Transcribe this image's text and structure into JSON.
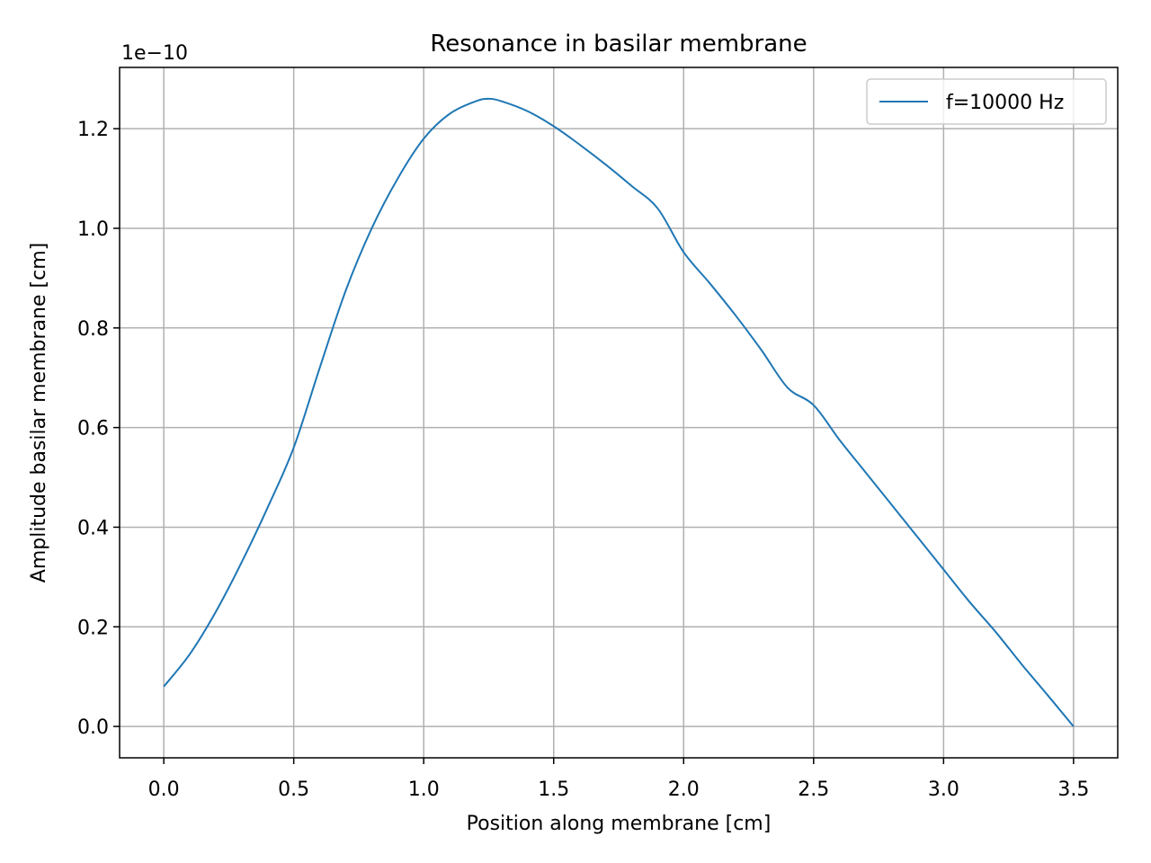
{
  "chart_data": {
    "type": "line",
    "title": "Resonance in basilar membrane",
    "xlabel": "Position along membrane [cm]",
    "ylabel": "Amplitude basilar membrane [cm]",
    "y_offset_label": "1e−10",
    "xlim": [
      -0.17,
      3.67
    ],
    "ylim": [
      -0.063,
      1.323
    ],
    "x_ticks": [
      0.0,
      0.5,
      1.0,
      1.5,
      2.0,
      2.5,
      3.0,
      3.5
    ],
    "x_tick_labels": [
      "0.0",
      "0.5",
      "1.0",
      "1.5",
      "2.0",
      "2.5",
      "3.0",
      "3.5"
    ],
    "y_ticks": [
      0.0,
      0.2,
      0.4,
      0.6,
      0.8,
      1.0,
      1.2
    ],
    "y_tick_labels": [
      "0.0",
      "0.2",
      "0.4",
      "0.6",
      "0.8",
      "1.0",
      "1.2"
    ],
    "grid": true,
    "legend_position": "top-right",
    "series": [
      {
        "name": "f=10000 Hz",
        "color": "#1f77b4",
        "x": [
          0.0,
          0.1,
          0.2,
          0.3,
          0.4,
          0.5,
          0.6,
          0.7,
          0.8,
          0.9,
          1.0,
          1.1,
          1.2,
          1.25,
          1.3,
          1.4,
          1.5,
          1.6,
          1.7,
          1.8,
          1.9,
          2.0,
          2.1,
          2.2,
          2.3,
          2.4,
          2.5,
          2.6,
          2.7,
          2.8,
          2.9,
          3.0,
          3.1,
          3.2,
          3.3,
          3.4,
          3.5
        ],
        "y": [
          0.08,
          0.145,
          0.23,
          0.33,
          0.44,
          0.56,
          0.72,
          0.875,
          1.0,
          1.1,
          1.18,
          1.23,
          1.255,
          1.26,
          1.255,
          1.235,
          1.205,
          1.168,
          1.128,
          1.085,
          1.04,
          0.952,
          0.89,
          0.825,
          0.755,
          0.68,
          0.645,
          0.575,
          0.51,
          0.445,
          0.38,
          0.315,
          0.25,
          0.19,
          0.125,
          0.063,
          0.0
        ]
      }
    ]
  }
}
